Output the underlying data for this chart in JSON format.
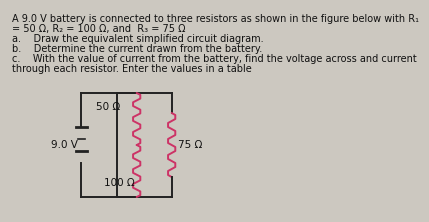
{
  "bg_color": "#ccc8c0",
  "text_color": "#111111",
  "title_line1": "A 9.0 V battery is connected to three resistors as shown in the figure below with R₁",
  "title_line2": "= 50 Ω, R₂ = 100 Ω, and  R₃ = 75 Ω",
  "item_a": "a.    Draw the equivalent simplified circuit diagram.",
  "item_b": "b.    Determine the current drawn from the battery.",
  "item_c": "c.    With the value of current from the battery, find the voltage across and current",
  "item_c2": "through each resistor. Enter the values in a table",
  "battery_label": "9.0 V",
  "r1_label": "50 Ω",
  "r2_label": "100 Ω",
  "r3_label": "75 Ω",
  "circuit_box_color": "#e8e0d8",
  "resistor_color": "#cc3366",
  "wire_color": "#222222"
}
